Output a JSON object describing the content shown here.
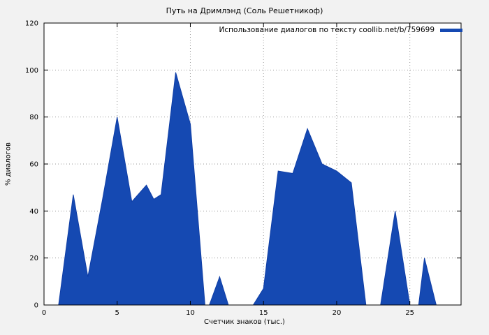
{
  "figure": {
    "background": "#f2f2f2"
  },
  "colors": {
    "fill": "#1549b2",
    "stroke": "#0f3ea6",
    "plot_bg": "#ffffff",
    "grid": "#9a9a9a",
    "border": "#000000",
    "text": "#000000"
  },
  "chart_data": {
    "type": "area",
    "title": "Путь на Дримлэнд (Соль Решетникоф)",
    "xlabel": "Счетчик знаков (тыс.)",
    "ylabel": "% диалогов",
    "xlim": [
      0,
      28.5
    ],
    "ylim": [
      0,
      120
    ],
    "x_ticks": [
      0,
      5,
      10,
      15,
      20,
      25
    ],
    "y_ticks": [
      0,
      20,
      40,
      60,
      80,
      100,
      120
    ],
    "grid": true,
    "legend_position": "top-right",
    "series": [
      {
        "name": "Использование диалогов по тексту coollib.net/b/759699",
        "points": [
          [
            0,
            0
          ],
          [
            1,
            0
          ],
          [
            2,
            47
          ],
          [
            3,
            12
          ],
          [
            4,
            45
          ],
          [
            5,
            80
          ],
          [
            6,
            44
          ],
          [
            7,
            51
          ],
          [
            7.5,
            45
          ],
          [
            8,
            47
          ],
          [
            9,
            99
          ],
          [
            10,
            77
          ],
          [
            11,
            0
          ],
          [
            11.3,
            0
          ],
          [
            12,
            12
          ],
          [
            12.6,
            0
          ],
          [
            14.3,
            0
          ],
          [
            15,
            7
          ],
          [
            16,
            57
          ],
          [
            17,
            56
          ],
          [
            18,
            75
          ],
          [
            19,
            60
          ],
          [
            20,
            57
          ],
          [
            21,
            52
          ],
          [
            22,
            0
          ],
          [
            23,
            0
          ],
          [
            24,
            40
          ],
          [
            25,
            0
          ],
          [
            25.6,
            0
          ],
          [
            26,
            20
          ],
          [
            26.8,
            0
          ]
        ]
      }
    ]
  }
}
